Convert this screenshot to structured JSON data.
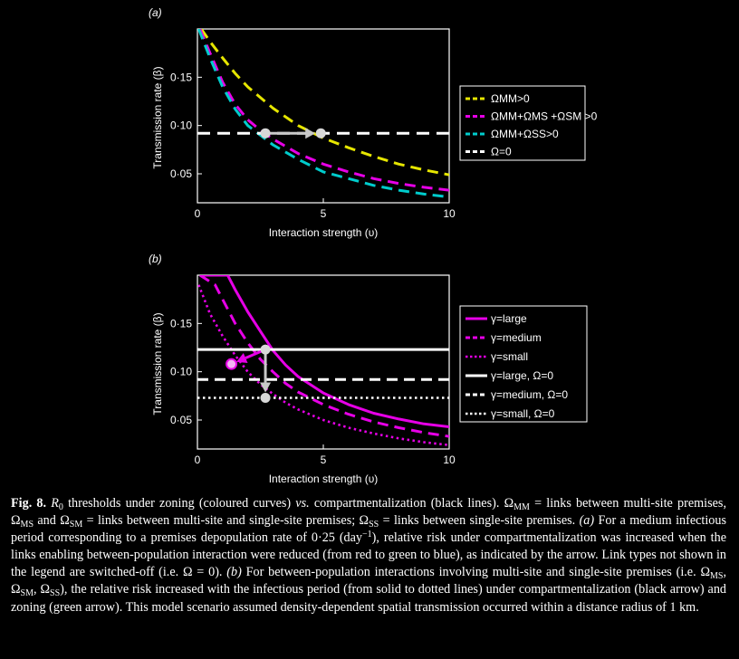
{
  "chart_data": [
    {
      "panel_label": "(a)",
      "type": "line",
      "xlabel": "Interaction strength (υ)",
      "ylabel": "Transmission rate (β)",
      "xlim": [
        0,
        10
      ],
      "ylim": [
        0.02,
        0.2
      ],
      "xticks": [
        "0",
        "5",
        "10"
      ],
      "yticks": [
        "0·05",
        "0·10",
        "0·15"
      ],
      "legend_position": "right",
      "series": [
        {
          "name": "ΩMM>0",
          "color": "#e6e600",
          "style": "dashed",
          "x": [
            0.15,
            0.5,
            1,
            1.5,
            2,
            3,
            4,
            5,
            6,
            7,
            8,
            9,
            10
          ],
          "y": [
            0.2,
            0.187,
            0.17,
            0.154,
            0.14,
            0.118,
            0.1,
            0.087,
            0.077,
            0.068,
            0.06,
            0.054,
            0.049
          ]
        },
        {
          "name": "ΩMM+ΩMS +ΩSM >0",
          "color": "#e600e6",
          "style": "dashed",
          "x": [
            0.1,
            0.5,
            1,
            1.5,
            2,
            2.5,
            3,
            4,
            5,
            6,
            7,
            8,
            9,
            10
          ],
          "y": [
            0.2,
            0.175,
            0.145,
            0.122,
            0.106,
            0.095,
            0.086,
            0.071,
            0.06,
            0.052,
            0.045,
            0.04,
            0.036,
            0.033
          ]
        },
        {
          "name": "ΩMM+ΩSS>0",
          "color": "#00cccc",
          "style": "dashed",
          "x": [
            0.05,
            0.5,
            1,
            1.5,
            2,
            2.5,
            3,
            4,
            5,
            6,
            7,
            8,
            9,
            10
          ],
          "y": [
            0.2,
            0.17,
            0.14,
            0.117,
            0.1,
            0.09,
            0.08,
            0.065,
            0.052,
            0.045,
            0.038,
            0.033,
            0.029,
            0.026
          ]
        },
        {
          "name": "Ω=0",
          "color": "#ffffff",
          "style": "dashed-white",
          "x": [
            0,
            10
          ],
          "y": [
            0.092,
            0.092
          ]
        }
      ],
      "annotations": {
        "points": [
          {
            "x": 2.7,
            "y": 0.092
          },
          {
            "x": 4.9,
            "y": 0.092
          }
        ],
        "arrow": {
          "from": [
            2.7,
            0.092
          ],
          "to": [
            4.9,
            0.092
          ],
          "color": "#c8c8c8"
        }
      }
    },
    {
      "panel_label": "(b)",
      "type": "line",
      "xlabel": "Interaction strength (υ)",
      "ylabel": "Transmission rate (β)",
      "xlim": [
        0,
        10
      ],
      "ylim": [
        0.02,
        0.2
      ],
      "xticks": [
        "0",
        "5",
        "10"
      ],
      "yticks": [
        "0·05",
        "0·10",
        "0·15"
      ],
      "legend_position": "right",
      "series": [
        {
          "name": "γ=large",
          "color": "#e600e6",
          "style": "solid",
          "x": [
            0.1,
            1.2,
            1.5,
            2,
            2.5,
            3,
            3.5,
            4,
            5,
            6,
            7,
            8,
            9,
            10
          ],
          "y": [
            0.2,
            0.2,
            0.185,
            0.162,
            0.142,
            0.122,
            0.107,
            0.095,
            0.078,
            0.066,
            0.057,
            0.051,
            0.046,
            0.043
          ]
        },
        {
          "name": "γ=medium",
          "color": "#e600e6",
          "style": "dashed",
          "x": [
            0.1,
            0.7,
            1,
            1.5,
            2,
            2.5,
            3,
            3.5,
            4,
            5,
            6,
            7,
            8,
            9,
            10
          ],
          "y": [
            0.2,
            0.19,
            0.175,
            0.15,
            0.13,
            0.113,
            0.1,
            0.088,
            0.079,
            0.066,
            0.056,
            0.048,
            0.042,
            0.037,
            0.033
          ]
        },
        {
          "name": "γ=small",
          "color": "#e600e6",
          "style": "dotted",
          "x": [
            0.05,
            0.5,
            1,
            1.5,
            2,
            2.5,
            3,
            3.5,
            4,
            5,
            6,
            7,
            8,
            9,
            10
          ],
          "y": [
            0.19,
            0.16,
            0.137,
            0.117,
            0.1,
            0.087,
            0.077,
            0.068,
            0.061,
            0.05,
            0.042,
            0.036,
            0.031,
            0.027,
            0.024
          ]
        },
        {
          "name": "γ=large, Ω=0",
          "color": "#ffffff",
          "style": "solid",
          "x": [
            0,
            10
          ],
          "y": [
            0.123,
            0.123
          ]
        },
        {
          "name": "γ=medium, Ω=0",
          "color": "#ffffff",
          "style": "dashed",
          "x": [
            0,
            10
          ],
          "y": [
            0.092,
            0.092
          ]
        },
        {
          "name": "γ=small, Ω=0",
          "color": "#ffffff",
          "style": "dotted",
          "x": [
            0,
            10
          ],
          "y": [
            0.073,
            0.073
          ]
        }
      ],
      "annotations": {
        "points": [
          {
            "x": 2.7,
            "y": 0.123
          },
          {
            "x": 2.7,
            "y": 0.073
          },
          {
            "x": 1.35,
            "y": 0.108
          }
        ],
        "arrows": [
          {
            "from": [
              2.7,
              0.123
            ],
            "to": [
              2.7,
              0.073
            ],
            "color": "#c8c8c8"
          },
          {
            "from": [
              2.7,
              0.123
            ],
            "to": [
              1.35,
              0.108
            ],
            "color": "#e600e6"
          }
        ]
      }
    }
  ],
  "caption": {
    "label": "Fig. 8.",
    "r0": "R",
    "r0_sub": "0",
    "text1": " thresholds under zoning (coloured curves) ",
    "vs": "vs.",
    "text2": " compartmentalization (black lines). Ω",
    "sub_mm": "MM",
    "text3": " = links between multi-site premises, Ω",
    "sub_ms": "MS",
    "text4": " and Ω",
    "sub_sm": "SM",
    "text5": " = links between multi-site and single-site premises; Ω",
    "sub_ss": "SS",
    "text6": " = links between single-site premises. ",
    "panel_a": "(a)",
    "text7": " For a medium infectious period corresponding to a premises depopulation rate of 0·25 (day",
    "sup_neg1": "−1",
    "text8": "), relative risk under compartmentalization was increased when the links enabling between-population interaction were reduced (from red to green to blue), as indicated by the arrow. Link types not shown in the legend are switched-off (i.e. Ω = 0). ",
    "panel_b": "(b)",
    "text9": " For between-population interactions involving multi-site and single-site premises (i.e. Ω",
    "sub_ms2": "MS",
    "text10": ", Ω",
    "sub_sm2": "SM",
    "text11": ", Ω",
    "sub_ss2": "SS",
    "text12": "), the relative risk increased with the infectious period (from solid to dotted lines) under compartmentalization (black arrow) and zoning (green arrow). This model scenario assumed density-dependent spatial transmission occurred within a distance radius of 1 km."
  }
}
